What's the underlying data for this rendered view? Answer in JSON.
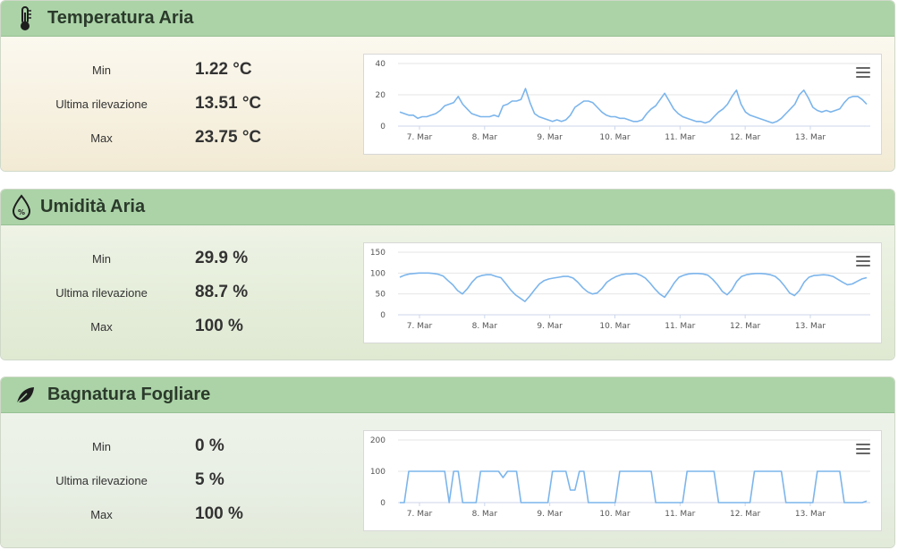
{
  "panels": [
    {
      "title": "Temperatura Aria",
      "icon": "thermometer-icon",
      "stats": [
        {
          "label": "Min",
          "value": "1.22 °C"
        },
        {
          "label": "Ultima rilevazione",
          "value": "13.51 °C"
        },
        {
          "label": "Max",
          "value": "23.75 °C"
        }
      ],
      "chart_data": {
        "type": "line",
        "x_ticks": [
          "7. Mar",
          "8. Mar",
          "9. Mar",
          "10. Mar",
          "11. Mar",
          "12. Mar",
          "13. Mar"
        ],
        "y_ticks": [
          "0",
          "20",
          "40"
        ],
        "ylim": [
          0,
          40
        ],
        "color": "#7cb5ec",
        "grid": true,
        "series": [
          {
            "values": [
              9,
              8,
              7,
              7,
              5,
              6,
              6,
              7,
              8,
              10,
              13,
              14,
              15,
              19,
              14,
              11,
              8,
              7,
              6,
              6,
              6,
              7,
              6,
              13,
              14,
              16,
              16,
              17,
              24,
              15,
              8,
              6,
              5,
              4,
              3,
              4,
              3,
              4,
              7,
              12,
              14,
              16,
              16,
              15,
              12,
              9,
              7,
              6,
              6,
              5,
              5,
              4,
              3,
              3,
              4,
              8,
              11,
              13,
              17,
              21,
              16,
              11,
              8,
              6,
              5,
              4,
              3,
              3,
              2,
              3,
              6,
              9,
              11,
              14,
              19,
              23,
              14,
              9,
              7,
              6,
              5,
              4,
              3,
              2,
              3,
              5,
              8,
              11,
              14,
              20,
              23,
              18,
              12,
              10,
              9,
              10,
              9,
              10,
              11,
              15,
              18,
              19,
              19,
              17,
              14
            ]
          }
        ]
      }
    },
    {
      "title": "Umidità Aria",
      "icon": "humidity-drop-icon",
      "icon_text": "%",
      "stats": [
        {
          "label": "Min",
          "value": "29.9 %"
        },
        {
          "label": "Ultima rilevazione",
          "value": "88.7 %"
        },
        {
          "label": "Max",
          "value": "100 %"
        }
      ],
      "chart_data": {
        "type": "line",
        "x_ticks": [
          "7. Mar",
          "8. Mar",
          "9. Mar",
          "10. Mar",
          "11. Mar",
          "12. Mar",
          "13. Mar"
        ],
        "y_ticks": [
          "0",
          "50",
          "100",
          "150"
        ],
        "ylim": [
          0,
          150
        ],
        "color": "#7cb5ec",
        "grid": true,
        "series": [
          {
            "values": [
              90,
              95,
              98,
              99,
              100,
              100,
              100,
              99,
              97,
              93,
              82,
              72,
              58,
              50,
              62,
              78,
              90,
              94,
              96,
              96,
              92,
              89,
              75,
              60,
              48,
              40,
              32,
              45,
              60,
              74,
              82,
              86,
              88,
              90,
              92,
              92,
              88,
              78,
              65,
              55,
              50,
              52,
              63,
              78,
              86,
              92,
              96,
              98,
              98,
              99,
              95,
              88,
              76,
              62,
              50,
              42,
              58,
              76,
              90,
              95,
              98,
              99,
              99,
              98,
              95,
              85,
              72,
              56,
              48,
              60,
              80,
              92,
              96,
              98,
              99,
              99,
              98,
              96,
              92,
              82,
              68,
              52,
              46,
              58,
              78,
              90,
              94,
              95,
              96,
              95,
              92,
              85,
              78,
              72,
              74,
              80,
              86,
              89
            ]
          }
        ]
      }
    },
    {
      "title": "Bagnatura Fogliare",
      "icon": "leaf-icon",
      "stats": [
        {
          "label": "Min",
          "value": "0 %"
        },
        {
          "label": "Ultima rilevazione",
          "value": "5 %"
        },
        {
          "label": "Max",
          "value": "100 %"
        }
      ],
      "chart_data": {
        "type": "line",
        "x_ticks": [
          "7. Mar",
          "8. Mar",
          "9. Mar",
          "10. Mar",
          "11. Mar",
          "12. Mar",
          "13. Mar"
        ],
        "y_ticks": [
          "0",
          "100",
          "200"
        ],
        "ylim": [
          0,
          200
        ],
        "color": "#7cb5ec",
        "grid": true,
        "series": [
          {
            "values": [
              0,
              0,
              100,
              100,
              100,
              100,
              100,
              100,
              100,
              100,
              100,
              0,
              100,
              100,
              0,
              0,
              0,
              0,
              100,
              100,
              100,
              100,
              100,
              80,
              100,
              100,
              100,
              0,
              0,
              0,
              0,
              0,
              0,
              0,
              100,
              100,
              100,
              100,
              40,
              40,
              100,
              100,
              0,
              0,
              0,
              0,
              0,
              0,
              0,
              100,
              100,
              100,
              100,
              100,
              100,
              100,
              100,
              0,
              0,
              0,
              0,
              0,
              0,
              0,
              100,
              100,
              100,
              100,
              100,
              100,
              100,
              0,
              0,
              0,
              0,
              0,
              0,
              0,
              0,
              100,
              100,
              100,
              100,
              100,
              100,
              100,
              0,
              0,
              0,
              0,
              0,
              0,
              0,
              100,
              100,
              100,
              100,
              100,
              100,
              0,
              0,
              0,
              0,
              0,
              5
            ]
          }
        ]
      }
    }
  ]
}
